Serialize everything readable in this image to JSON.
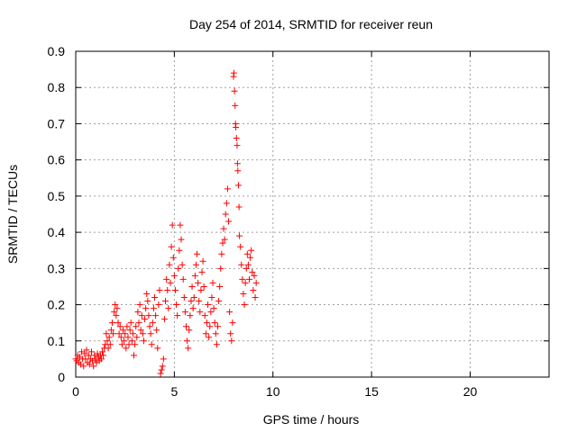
{
  "chart_data": {
    "type": "scatter",
    "title": "Day 254 of 2014, SRMTID for receiver reun",
    "xlabel": "GPS time / hours",
    "ylabel": "SRMTID / TECUs",
    "xlim": [
      0,
      24
    ],
    "ylim": [
      0,
      0.9
    ],
    "grid": true,
    "x_ticks": [
      0,
      5,
      10,
      15,
      20
    ],
    "y_ticks": [
      0,
      0.1,
      0.2,
      0.3,
      0.4,
      0.5,
      0.6,
      0.7,
      0.8,
      0.9
    ],
    "marker": "+",
    "color": "#ff0000",
    "series": [
      {
        "name": "SRMTID",
        "points": [
          [
            0.0,
            0.05
          ],
          [
            0.05,
            0.045
          ],
          [
            0.1,
            0.06
          ],
          [
            0.15,
            0.04
          ],
          [
            0.2,
            0.055
          ],
          [
            0.25,
            0.035
          ],
          [
            0.3,
            0.07
          ],
          [
            0.35,
            0.05
          ],
          [
            0.4,
            0.03
          ],
          [
            0.45,
            0.065
          ],
          [
            0.5,
            0.05
          ],
          [
            0.55,
            0.075
          ],
          [
            0.6,
            0.04
          ],
          [
            0.65,
            0.06
          ],
          [
            0.7,
            0.035
          ],
          [
            0.75,
            0.05
          ],
          [
            0.8,
            0.07
          ],
          [
            0.85,
            0.045
          ],
          [
            0.9,
            0.03
          ],
          [
            0.95,
            0.06
          ],
          [
            1.0,
            0.05
          ],
          [
            1.05,
            0.04
          ],
          [
            1.1,
            0.065
          ],
          [
            1.15,
            0.055
          ],
          [
            1.2,
            0.045
          ],
          [
            1.25,
            0.06
          ],
          [
            1.3,
            0.05
          ],
          [
            1.35,
            0.07
          ],
          [
            1.4,
            0.06
          ],
          [
            1.45,
            0.08
          ],
          [
            1.5,
            0.09
          ],
          [
            1.55,
            0.12
          ],
          [
            1.6,
            0.1
          ],
          [
            1.65,
            0.08
          ],
          [
            1.7,
            0.11
          ],
          [
            1.75,
            0.09
          ],
          [
            1.8,
            0.13
          ],
          [
            1.85,
            0.15
          ],
          [
            1.9,
            0.12
          ],
          [
            1.95,
            0.18
          ],
          [
            2.0,
            0.2
          ],
          [
            2.05,
            0.17
          ],
          [
            2.1,
            0.19
          ],
          [
            2.15,
            0.15
          ],
          [
            2.2,
            0.12
          ],
          [
            2.25,
            0.14
          ],
          [
            2.3,
            0.11
          ],
          [
            2.35,
            0.09
          ],
          [
            2.4,
            0.13
          ],
          [
            2.45,
            0.1
          ],
          [
            2.5,
            0.12
          ],
          [
            2.55,
            0.08
          ],
          [
            2.6,
            0.14
          ],
          [
            2.65,
            0.11
          ],
          [
            2.7,
            0.09
          ],
          [
            2.75,
            0.13
          ],
          [
            2.8,
            0.15
          ],
          [
            2.85,
            0.1
          ],
          [
            2.9,
            0.12
          ],
          [
            2.95,
            0.06
          ],
          [
            3.0,
            0.09
          ],
          [
            3.05,
            0.14
          ],
          [
            3.1,
            0.11
          ],
          [
            3.15,
            0.18
          ],
          [
            3.2,
            0.15
          ],
          [
            3.25,
            0.2
          ],
          [
            3.3,
            0.13
          ],
          [
            3.35,
            0.17
          ],
          [
            3.4,
            0.12
          ],
          [
            3.45,
            0.1
          ],
          [
            3.5,
            0.16
          ],
          [
            3.55,
            0.19
          ],
          [
            3.6,
            0.23
          ],
          [
            3.65,
            0.21
          ],
          [
            3.7,
            0.17
          ],
          [
            3.75,
            0.14
          ],
          [
            3.8,
            0.12
          ],
          [
            3.85,
            0.09
          ],
          [
            3.9,
            0.15
          ],
          [
            3.95,
            0.19
          ],
          [
            4.0,
            0.22
          ],
          [
            4.05,
            0.17
          ],
          [
            4.1,
            0.13
          ],
          [
            4.15,
            0.08
          ],
          [
            4.2,
            0.2
          ],
          [
            4.25,
            0.24
          ],
          [
            4.3,
            0.01
          ],
          [
            4.35,
            0.02
          ],
          [
            4.4,
            0.03
          ],
          [
            4.45,
            0.05
          ],
          [
            4.5,
            0.16
          ],
          [
            4.55,
            0.21
          ],
          [
            4.6,
            0.27
          ],
          [
            4.65,
            0.24
          ],
          [
            4.7,
            0.19
          ],
          [
            4.75,
            0.31
          ],
          [
            4.8,
            0.26
          ],
          [
            4.85,
            0.36
          ],
          [
            4.9,
            0.42
          ],
          [
            4.95,
            0.33
          ],
          [
            5.0,
            0.28
          ],
          [
            5.05,
            0.24
          ],
          [
            5.1,
            0.2
          ],
          [
            5.15,
            0.17
          ],
          [
            5.2,
            0.3
          ],
          [
            5.25,
            0.35
          ],
          [
            5.3,
            0.42
          ],
          [
            5.35,
            0.38
          ],
          [
            5.4,
            0.31
          ],
          [
            5.45,
            0.27
          ],
          [
            5.5,
            0.22
          ],
          [
            5.55,
            0.18
          ],
          [
            5.6,
            0.14
          ],
          [
            5.65,
            0.1
          ],
          [
            5.7,
            0.08
          ],
          [
            5.75,
            0.13
          ],
          [
            5.8,
            0.17
          ],
          [
            5.85,
            0.21
          ],
          [
            5.9,
            0.25
          ],
          [
            5.95,
            0.19
          ],
          [
            6.0,
            0.22
          ],
          [
            6.05,
            0.28
          ],
          [
            6.1,
            0.31
          ],
          [
            6.15,
            0.34
          ],
          [
            6.2,
            0.26
          ],
          [
            6.25,
            0.21
          ],
          [
            6.3,
            0.18
          ],
          [
            6.35,
            0.24
          ],
          [
            6.4,
            0.29
          ],
          [
            6.45,
            0.32
          ],
          [
            6.5,
            0.25
          ],
          [
            6.55,
            0.17
          ],
          [
            6.6,
            0.12
          ],
          [
            6.65,
            0.15
          ],
          [
            6.7,
            0.2
          ],
          [
            6.75,
            0.11
          ],
          [
            6.8,
            0.14
          ],
          [
            6.85,
            0.18
          ],
          [
            6.9,
            0.22
          ],
          [
            6.95,
            0.26
          ],
          [
            7.0,
            0.19
          ],
          [
            7.05,
            0.15
          ],
          [
            7.1,
            0.12
          ],
          [
            7.15,
            0.09
          ],
          [
            7.2,
            0.14
          ],
          [
            7.25,
            0.21
          ],
          [
            7.3,
            0.25
          ],
          [
            7.35,
            0.3
          ],
          [
            7.4,
            0.34
          ],
          [
            7.45,
            0.37
          ],
          [
            7.5,
            0.41
          ],
          [
            7.55,
            0.38
          ],
          [
            7.6,
            0.45
          ],
          [
            7.65,
            0.48
          ],
          [
            7.7,
            0.52
          ],
          [
            7.75,
            0.43
          ],
          [
            7.8,
            0.18
          ],
          [
            7.85,
            0.12
          ],
          [
            7.9,
            0.1
          ],
          [
            7.95,
            0.15
          ],
          [
            8.0,
            0.83
          ],
          [
            8.02,
            0.84
          ],
          [
            8.05,
            0.79
          ],
          [
            8.08,
            0.75
          ],
          [
            8.1,
            0.7
          ],
          [
            8.12,
            0.69
          ],
          [
            8.15,
            0.66
          ],
          [
            8.18,
            0.64
          ],
          [
            8.2,
            0.59
          ],
          [
            8.22,
            0.57
          ],
          [
            8.25,
            0.53
          ],
          [
            8.28,
            0.47
          ],
          [
            8.3,
            0.39
          ],
          [
            8.35,
            0.36
          ],
          [
            8.4,
            0.31
          ],
          [
            8.45,
            0.27
          ],
          [
            8.5,
            0.23
          ],
          [
            8.55,
            0.2
          ],
          [
            8.6,
            0.26
          ],
          [
            8.65,
            0.3
          ],
          [
            8.7,
            0.34
          ],
          [
            8.75,
            0.31
          ],
          [
            8.8,
            0.27
          ],
          [
            8.85,
            0.33
          ],
          [
            8.9,
            0.35
          ],
          [
            8.95,
            0.29
          ],
          [
            9.0,
            0.24
          ],
          [
            9.05,
            0.28
          ],
          [
            9.1,
            0.22
          ],
          [
            9.15,
            0.26
          ]
        ]
      }
    ]
  }
}
